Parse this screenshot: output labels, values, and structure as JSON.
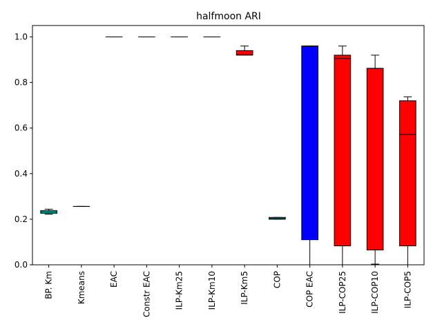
{
  "chart_data": {
    "type": "box",
    "title": "halfmoon ARI",
    "xlabel": "",
    "ylabel": "",
    "ylim": [
      0,
      1.05
    ],
    "yticks": [
      0.0,
      0.2,
      0.4,
      0.6,
      0.8,
      1.0
    ],
    "ytick_labels": [
      "0.0",
      "0.2",
      "0.4",
      "0.6",
      "0.8",
      "1.0"
    ],
    "grid": false,
    "categories": [
      "BP. Km",
      "Kmeans",
      "EAC",
      "Constr EAC",
      "ILP-Km25",
      "ILP-Km10",
      "ILP-Km5",
      "COP",
      "COP EAC",
      "ILP-COP25",
      "ILP-COP10",
      "ILP-COP5"
    ],
    "boxes": [
      {
        "label": "BP. Km",
        "color": "#00bfbf",
        "whisker_low": 0.222,
        "q1": 0.226,
        "median": 0.232,
        "q3": 0.238,
        "whisker_high": 0.244
      },
      {
        "label": "Kmeans",
        "color": "#00bfbf",
        "whisker_low": 0.256,
        "q1": 0.256,
        "median": 0.256,
        "q3": 0.256,
        "whisker_high": 0.256
      },
      {
        "label": "EAC",
        "color": "#ff0000",
        "whisker_low": 1.0,
        "q1": 1.0,
        "median": 1.0,
        "q3": 1.0,
        "whisker_high": 1.0
      },
      {
        "label": "Constr EAC",
        "color": "#ff0000",
        "whisker_low": 1.0,
        "q1": 1.0,
        "median": 1.0,
        "q3": 1.0,
        "whisker_high": 1.0
      },
      {
        "label": "ILP-Km25",
        "color": "#ff0000",
        "whisker_low": 1.0,
        "q1": 1.0,
        "median": 1.0,
        "q3": 1.0,
        "whisker_high": 1.0
      },
      {
        "label": "ILP-Km10",
        "color": "#ff0000",
        "whisker_low": 1.0,
        "q1": 1.0,
        "median": 1.0,
        "q3": 1.0,
        "whisker_high": 1.0
      },
      {
        "label": "ILP-Km5",
        "color": "#ff0000",
        "whisker_low": 0.92,
        "q1": 0.92,
        "median": 0.922,
        "q3": 0.94,
        "whisker_high": 0.96
      },
      {
        "label": "COP",
        "color": "#00bfbf",
        "whisker_low": 0.2,
        "q1": 0.2,
        "median": 0.203,
        "q3": 0.208,
        "whisker_high": 0.208
      },
      {
        "label": "COP EAC",
        "color": "#0000ff",
        "whisker_low": 0.0,
        "q1": 0.11,
        "median": 0.96,
        "q3": 0.96,
        "whisker_high": 0.96
      },
      {
        "label": "ILP-COP25",
        "color": "#ff0000",
        "whisker_low": 0.0,
        "q1": 0.083,
        "median": 0.905,
        "q3": 0.92,
        "whisker_high": 0.96
      },
      {
        "label": "ILP-COP10",
        "color": "#ff0000",
        "whisker_low": 0.003,
        "q1": 0.065,
        "median": 0.862,
        "q3": 0.862,
        "whisker_high": 0.92
      },
      {
        "label": "ILP-COP5",
        "color": "#ff0000",
        "whisker_low": 0.0,
        "q1": 0.083,
        "median": 0.572,
        "q3": 0.72,
        "whisker_high": 0.737
      }
    ]
  }
}
